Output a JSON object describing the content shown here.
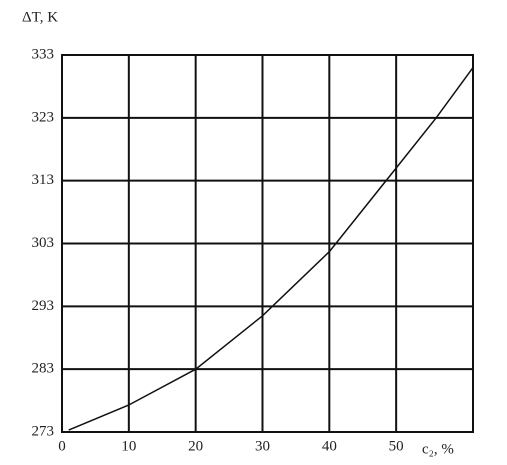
{
  "chart_data": {
    "type": "line",
    "y_label": "ΔT, K",
    "x_label": "c₂, %",
    "x": [
      1,
      10,
      20,
      30,
      40,
      50,
      56,
      61.5
    ],
    "values": [
      273.3,
      277.3,
      283,
      291.5,
      301.7,
      315,
      323,
      331
    ],
    "color": "#111",
    "xlim": [
      0,
      61.5
    ],
    "xticks": [
      0,
      10,
      20,
      30,
      40,
      50
    ],
    "ylim": [
      273,
      333
    ],
    "yticks": [
      273,
      283,
      293,
      303,
      313,
      323,
      333
    ],
    "grid": true
  }
}
